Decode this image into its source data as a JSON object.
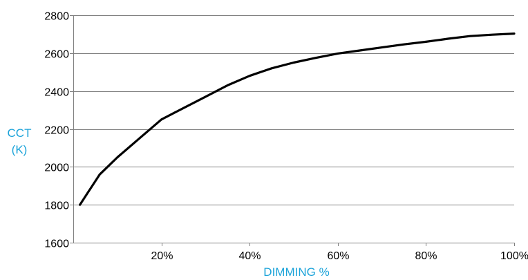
{
  "chart_data": {
    "type": "line",
    "xlabel": "DIMMING %",
    "ylabel_lines": [
      "CCT",
      "(K)"
    ],
    "xlim": [
      0,
      100
    ],
    "ylim": [
      1600,
      2800
    ],
    "x_ticks": [
      {
        "value": 20,
        "label": "20%"
      },
      {
        "value": 40,
        "label": "40%"
      },
      {
        "value": 60,
        "label": "60%"
      },
      {
        "value": 80,
        "label": "80%"
      },
      {
        "value": 100,
        "label": "100%"
      }
    ],
    "y_ticks": [
      {
        "value": 1600,
        "label": "1600"
      },
      {
        "value": 1800,
        "label": "1800"
      },
      {
        "value": 2000,
        "label": "2000"
      },
      {
        "value": 2200,
        "label": "2200"
      },
      {
        "value": 2400,
        "label": "2400"
      },
      {
        "value": 2600,
        "label": "2600"
      },
      {
        "value": 2800,
        "label": "2800"
      }
    ],
    "grid": true,
    "series": [
      {
        "x": [
          1.5,
          6,
          10,
          15,
          20,
          25,
          30,
          35,
          40,
          45,
          50,
          55,
          60,
          65,
          70,
          75,
          80,
          85,
          90,
          95,
          100
        ],
        "y": [
          1800,
          1960,
          2050,
          2150,
          2250,
          2310,
          2370,
          2430,
          2480,
          2520,
          2550,
          2575,
          2598,
          2614,
          2630,
          2646,
          2660,
          2676,
          2690,
          2697,
          2703
        ]
      }
    ],
    "colors": {
      "line": "#000000",
      "axis_label": "#1ba3d9",
      "grid": "#808080"
    }
  }
}
